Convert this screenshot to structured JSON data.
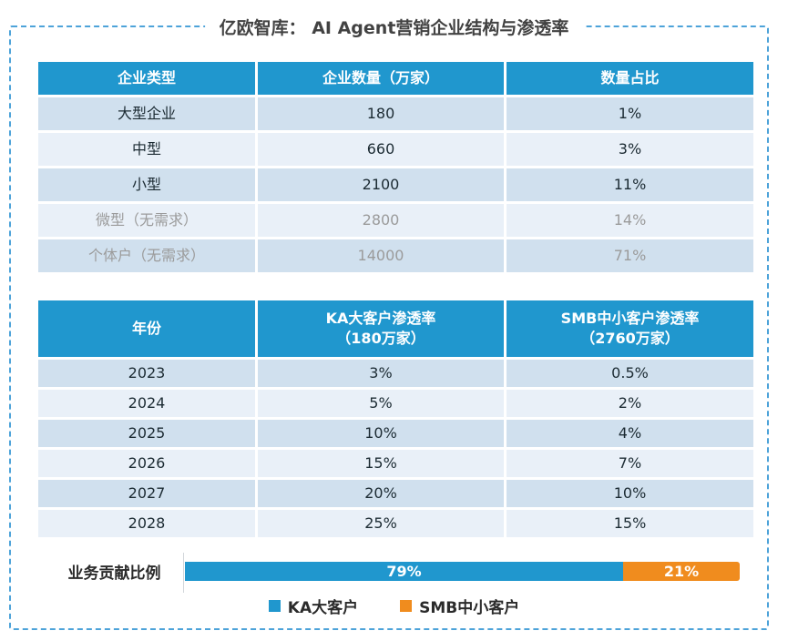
{
  "title": "亿欧智库： AI Agent营销企业结构与渗透率",
  "colors": {
    "header_blue": "#2097ce",
    "row_dark": "#d0e0ee",
    "row_light": "#e9f0f8",
    "bar_blue": "#2097ce",
    "bar_orange": "#f08c1e",
    "frame_border": "#4da3d9",
    "muted_text": "#9b9b9b"
  },
  "table2_header_lines": {
    "ka": {
      "line1": "KA大客户渗透率",
      "line2": "（180万家）"
    },
    "smb": {
      "line1": "SMB中小客户渗透率",
      "line2": "（2760万家）"
    }
  },
  "chart_data": [
    {
      "type": "table",
      "columns": [
        "企业类型",
        "企业数量（万家）",
        "数量占比"
      ],
      "rows": [
        [
          "大型企业",
          "180",
          "1%"
        ],
        [
          "中型",
          "660",
          "3%"
        ],
        [
          "小型",
          "2100",
          "11%"
        ],
        [
          "微型（无需求）",
          "2800",
          "14%"
        ],
        [
          "个体户（无需求）",
          "14000",
          "71%"
        ]
      ]
    },
    {
      "type": "table",
      "columns": [
        "年份",
        "KA大客户渗透率（180万家）",
        "SMB中小客户渗透率（2760万家）"
      ],
      "rows": [
        [
          "2023",
          "3%",
          "0.5%"
        ],
        [
          "2024",
          "5%",
          "2%"
        ],
        [
          "2025",
          "10%",
          "4%"
        ],
        [
          "2026",
          "15%",
          "7%"
        ],
        [
          "2027",
          "20%",
          "10%"
        ],
        [
          "2028",
          "25%",
          "15%"
        ]
      ]
    },
    {
      "type": "bar",
      "stacked": true,
      "categories": [
        "业务贡献比例"
      ],
      "series": [
        {
          "name": "KA大客户",
          "values": [
            79
          ],
          "color": "#2097ce"
        },
        {
          "name": "SMB中小客户",
          "values": [
            21
          ],
          "color": "#f08c1e"
        }
      ],
      "data_labels": [
        "79%",
        "21%"
      ],
      "legend_position": "bottom"
    }
  ]
}
